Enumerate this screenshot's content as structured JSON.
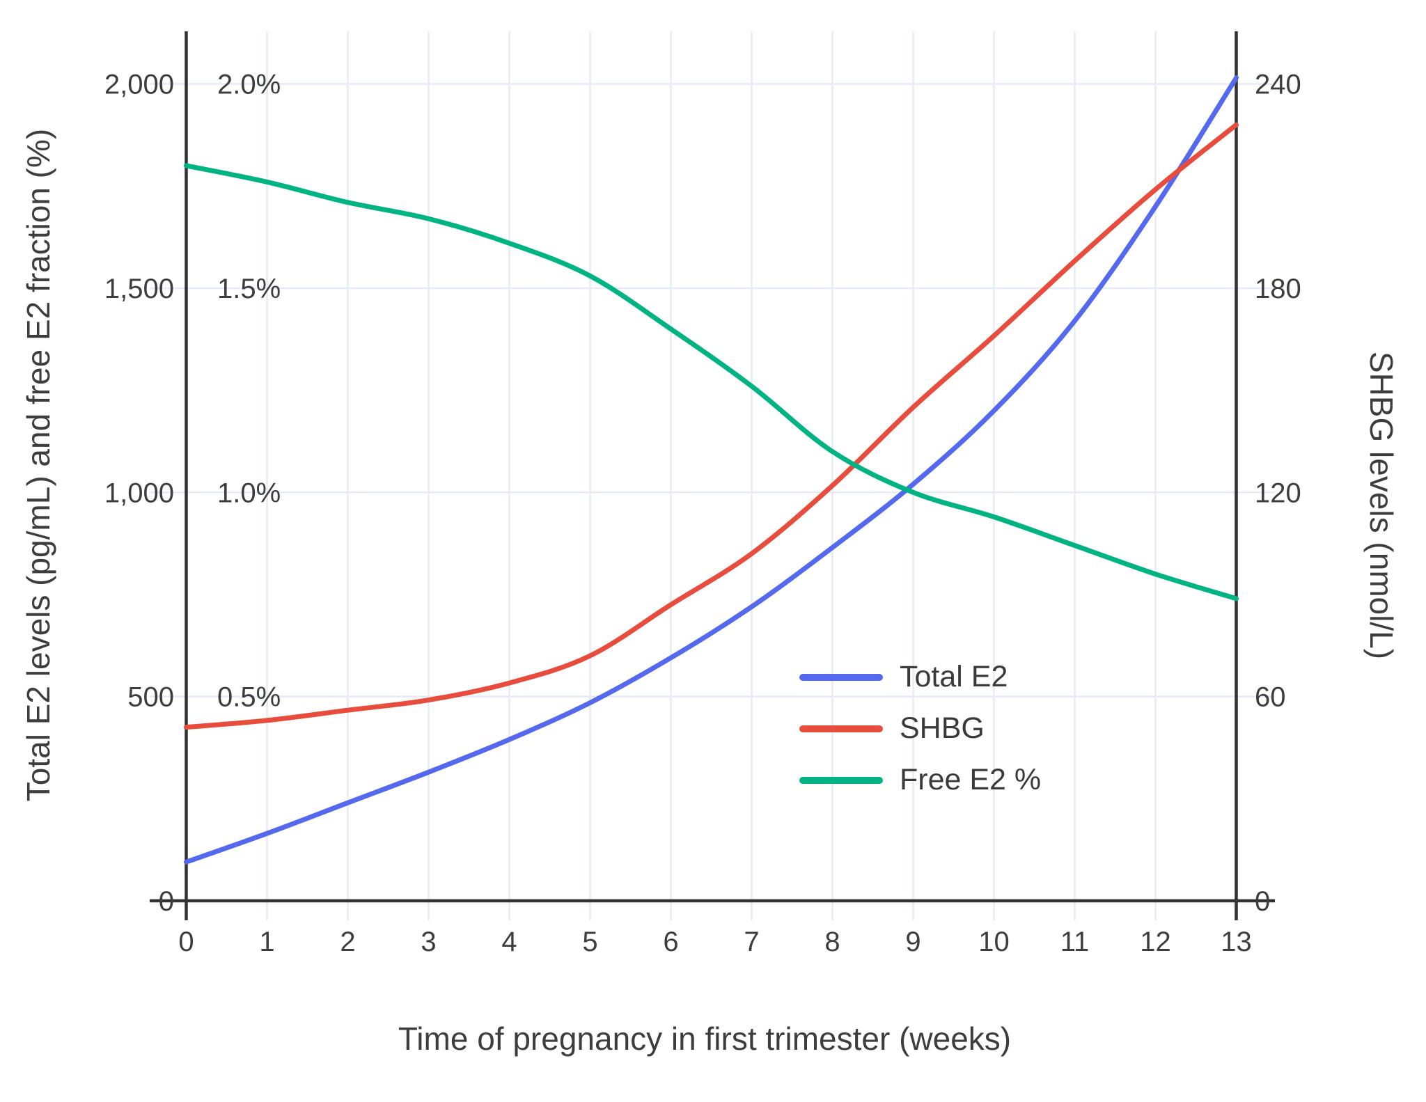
{
  "chart_data": {
    "type": "line",
    "xlabel": "Time of pregnancy in first trimester (weeks)",
    "ylabel_left": "Total E2 levels (pg/mL) and free E2 fraction (%)",
    "ylabel_right": "SHBG levels (nmol/L)",
    "x": [
      0,
      1,
      2,
      3,
      4,
      5,
      6,
      7,
      8,
      9,
      10,
      11,
      12,
      13
    ],
    "x_tick_labels": [
      "0",
      "1",
      "2",
      "3",
      "4",
      "5",
      "6",
      "7",
      "8",
      "9",
      "10",
      "11",
      "12",
      "13"
    ],
    "y_left_range": [
      0,
      2000
    ],
    "y_right_range": [
      0,
      240
    ],
    "y_left_tick_labels": [
      "0",
      "500",
      "1,000",
      "1,500",
      "2,000"
    ],
    "y_left_tick_values": [
      0,
      500,
      1000,
      1500,
      2000
    ],
    "y_left_pct_tick_labels": [
      "0.5%",
      "1.0%",
      "1.5%",
      "2.0%"
    ],
    "y_left_pct_tick_values": [
      500,
      1000,
      1500,
      2000
    ],
    "y_right_tick_labels": [
      "0",
      "60",
      "120",
      "180",
      "240"
    ],
    "y_right_tick_values": [
      0,
      60,
      120,
      180,
      240
    ],
    "grid": true,
    "legend_position": "inside-lower-right",
    "series": [
      {
        "name": "Total E2",
        "axis": "left",
        "unit": "pg/mL",
        "color": "#5569ee",
        "values": [
          95,
          165,
          240,
          315,
          395,
          485,
          595,
          720,
          865,
          1020,
          1200,
          1420,
          1700,
          2015
        ]
      },
      {
        "name": "SHBG",
        "axis": "right",
        "unit": "nmol/L",
        "color": "#e74c3c",
        "values": [
          51,
          53,
          56,
          59,
          64,
          72,
          87,
          102,
          122,
          145,
          166,
          188,
          209,
          228
        ]
      },
      {
        "name": "Free E2 %",
        "axis": "left_percent",
        "unit": "%",
        "color": "#00b383",
        "values": [
          1.8,
          1.76,
          1.71,
          1.67,
          1.61,
          1.53,
          1.4,
          1.26,
          1.1,
          1.0,
          0.94,
          0.87,
          0.8,
          0.74
        ]
      }
    ],
    "colors": {
      "grid": "#e6ebf7",
      "axis": "#333333",
      "tick_text": "#3d3d3d"
    }
  },
  "legend": {
    "items": [
      {
        "label": "Total E2"
      },
      {
        "label": "SHBG"
      },
      {
        "label": "Free E2 %"
      }
    ]
  },
  "titles": {
    "left_axis": "Total E2 levels (pg/mL) and free E2 fraction (%)",
    "right_axis": "SHBG levels (nmol/L)",
    "x_axis": "Time of pregnancy in first trimester (weeks)"
  }
}
